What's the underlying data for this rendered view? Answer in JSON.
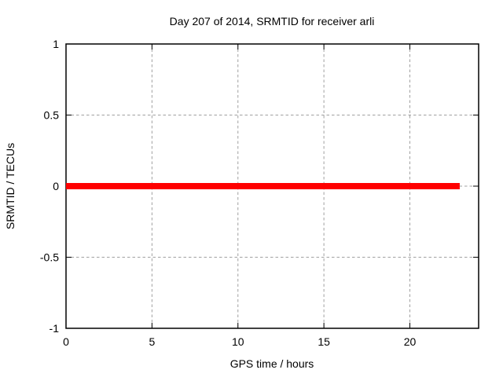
{
  "chart_data": {
    "type": "line",
    "title": "Day 207 of 2014, SRMTID for receiver arli",
    "xlabel": "GPS time / hours",
    "ylabel": "SRMTID / TECUs",
    "xlim": [
      0,
      24
    ],
    "ylim": [
      -1,
      1
    ],
    "xticks": [
      0,
      5,
      10,
      15,
      20
    ],
    "xtick_labels": [
      "0",
      "5",
      "10",
      "15",
      "20"
    ],
    "yticks": [
      -1,
      -0.5,
      0,
      0.5,
      1
    ],
    "ytick_labels": [
      "-1",
      "-0.5",
      "0",
      "0.5",
      "1"
    ],
    "grid": true,
    "legend": false,
    "series": [
      {
        "name": "SRMTID",
        "color": "#ff0000",
        "line_width": 8,
        "x": [
          0,
          22.9
        ],
        "y": [
          0,
          0
        ]
      }
    ]
  },
  "colors": {
    "background": "#ffffff",
    "axis": "#000000",
    "grid": "#a0a0a0",
    "text": "#000000",
    "series": "#ff0000"
  }
}
